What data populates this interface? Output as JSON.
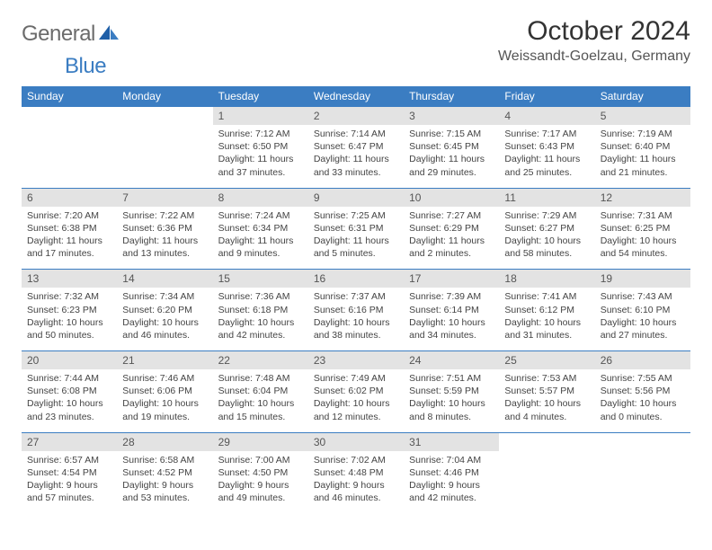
{
  "logo": {
    "text1": "General",
    "text2": "Blue"
  },
  "title": "October 2024",
  "location": "Weissandt-Goelzau, Germany",
  "colors": {
    "header_bg": "#3b7dc2",
    "header_text": "#ffffff",
    "daynum_bg": "#e3e3e3",
    "daynum_text": "#555555",
    "border": "#3b7dc2",
    "body_text": "#444444",
    "title_text": "#333333",
    "logo_gray": "#6b6b6b",
    "logo_blue": "#3b7dc2"
  },
  "fonts": {
    "title_size": 30,
    "location_size": 16,
    "header_size": 12,
    "daynum_size": 12,
    "cell_size": 10.5
  },
  "weekdays": [
    "Sunday",
    "Monday",
    "Tuesday",
    "Wednesday",
    "Thursday",
    "Friday",
    "Saturday"
  ],
  "weeks": [
    [
      null,
      null,
      {
        "d": "1",
        "sr": "7:12 AM",
        "ss": "6:50 PM",
        "dl": "11 hours and 37 minutes."
      },
      {
        "d": "2",
        "sr": "7:14 AM",
        "ss": "6:47 PM",
        "dl": "11 hours and 33 minutes."
      },
      {
        "d": "3",
        "sr": "7:15 AM",
        "ss": "6:45 PM",
        "dl": "11 hours and 29 minutes."
      },
      {
        "d": "4",
        "sr": "7:17 AM",
        "ss": "6:43 PM",
        "dl": "11 hours and 25 minutes."
      },
      {
        "d": "5",
        "sr": "7:19 AM",
        "ss": "6:40 PM",
        "dl": "11 hours and 21 minutes."
      }
    ],
    [
      {
        "d": "6",
        "sr": "7:20 AM",
        "ss": "6:38 PM",
        "dl": "11 hours and 17 minutes."
      },
      {
        "d": "7",
        "sr": "7:22 AM",
        "ss": "6:36 PM",
        "dl": "11 hours and 13 minutes."
      },
      {
        "d": "8",
        "sr": "7:24 AM",
        "ss": "6:34 PM",
        "dl": "11 hours and 9 minutes."
      },
      {
        "d": "9",
        "sr": "7:25 AM",
        "ss": "6:31 PM",
        "dl": "11 hours and 5 minutes."
      },
      {
        "d": "10",
        "sr": "7:27 AM",
        "ss": "6:29 PM",
        "dl": "11 hours and 2 minutes."
      },
      {
        "d": "11",
        "sr": "7:29 AM",
        "ss": "6:27 PM",
        "dl": "10 hours and 58 minutes."
      },
      {
        "d": "12",
        "sr": "7:31 AM",
        "ss": "6:25 PM",
        "dl": "10 hours and 54 minutes."
      }
    ],
    [
      {
        "d": "13",
        "sr": "7:32 AM",
        "ss": "6:23 PM",
        "dl": "10 hours and 50 minutes."
      },
      {
        "d": "14",
        "sr": "7:34 AM",
        "ss": "6:20 PM",
        "dl": "10 hours and 46 minutes."
      },
      {
        "d": "15",
        "sr": "7:36 AM",
        "ss": "6:18 PM",
        "dl": "10 hours and 42 minutes."
      },
      {
        "d": "16",
        "sr": "7:37 AM",
        "ss": "6:16 PM",
        "dl": "10 hours and 38 minutes."
      },
      {
        "d": "17",
        "sr": "7:39 AM",
        "ss": "6:14 PM",
        "dl": "10 hours and 34 minutes."
      },
      {
        "d": "18",
        "sr": "7:41 AM",
        "ss": "6:12 PM",
        "dl": "10 hours and 31 minutes."
      },
      {
        "d": "19",
        "sr": "7:43 AM",
        "ss": "6:10 PM",
        "dl": "10 hours and 27 minutes."
      }
    ],
    [
      {
        "d": "20",
        "sr": "7:44 AM",
        "ss": "6:08 PM",
        "dl": "10 hours and 23 minutes."
      },
      {
        "d": "21",
        "sr": "7:46 AM",
        "ss": "6:06 PM",
        "dl": "10 hours and 19 minutes."
      },
      {
        "d": "22",
        "sr": "7:48 AM",
        "ss": "6:04 PM",
        "dl": "10 hours and 15 minutes."
      },
      {
        "d": "23",
        "sr": "7:49 AM",
        "ss": "6:02 PM",
        "dl": "10 hours and 12 minutes."
      },
      {
        "d": "24",
        "sr": "7:51 AM",
        "ss": "5:59 PM",
        "dl": "10 hours and 8 minutes."
      },
      {
        "d": "25",
        "sr": "7:53 AM",
        "ss": "5:57 PM",
        "dl": "10 hours and 4 minutes."
      },
      {
        "d": "26",
        "sr": "7:55 AM",
        "ss": "5:56 PM",
        "dl": "10 hours and 0 minutes."
      }
    ],
    [
      {
        "d": "27",
        "sr": "6:57 AM",
        "ss": "4:54 PM",
        "dl": "9 hours and 57 minutes."
      },
      {
        "d": "28",
        "sr": "6:58 AM",
        "ss": "4:52 PM",
        "dl": "9 hours and 53 minutes."
      },
      {
        "d": "29",
        "sr": "7:00 AM",
        "ss": "4:50 PM",
        "dl": "9 hours and 49 minutes."
      },
      {
        "d": "30",
        "sr": "7:02 AM",
        "ss": "4:48 PM",
        "dl": "9 hours and 46 minutes."
      },
      {
        "d": "31",
        "sr": "7:04 AM",
        "ss": "4:46 PM",
        "dl": "9 hours and 42 minutes."
      },
      null,
      null
    ]
  ],
  "labels": {
    "sunrise": "Sunrise:",
    "sunset": "Sunset:",
    "daylight": "Daylight:"
  }
}
